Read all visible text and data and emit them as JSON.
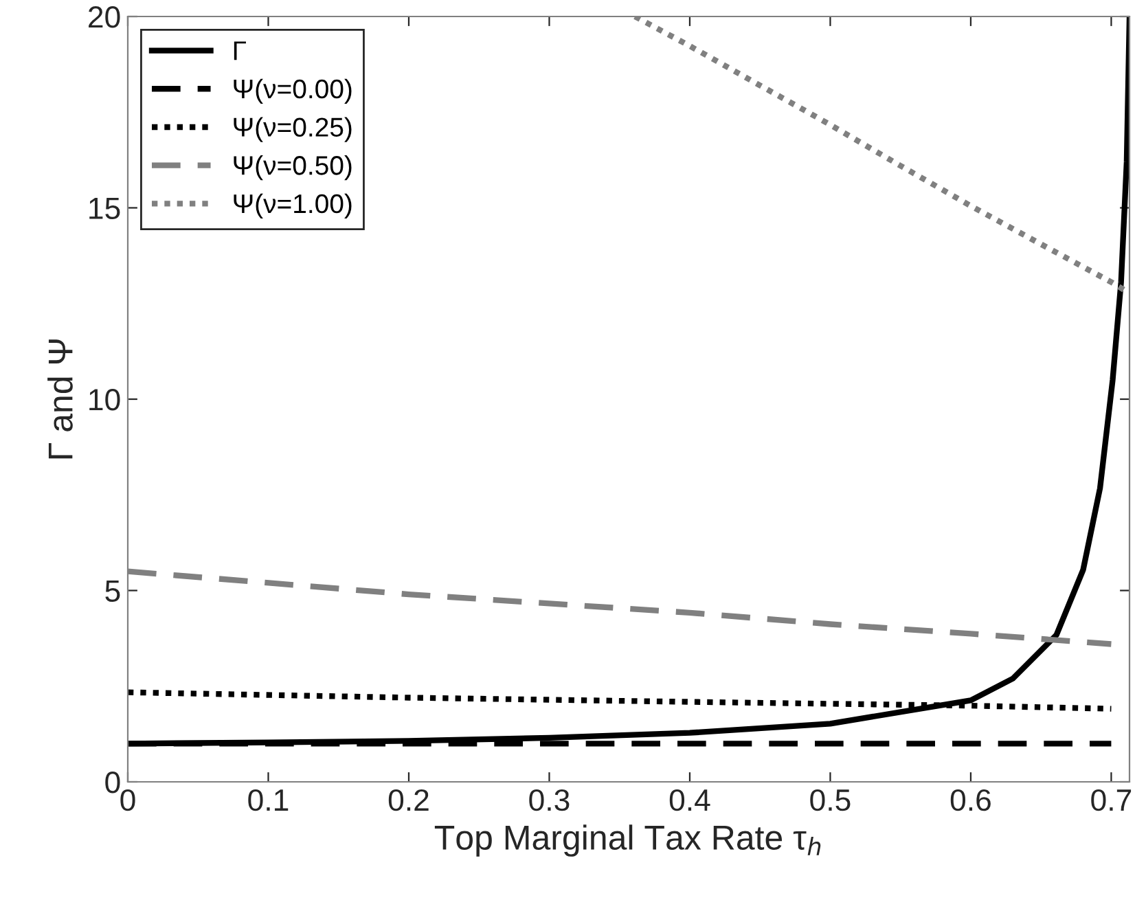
{
  "chart_data": {
    "type": "line",
    "xlabel": "Top Marginal Tax Rate τ$_{h}$",
    "ylabel": "Γ and Ψ",
    "xlim": [
      0,
      0.713
    ],
    "ylim": [
      0,
      20
    ],
    "xticks": [
      0,
      0.1,
      0.2,
      0.3,
      0.4,
      0.5,
      0.6,
      0.7
    ],
    "yticks": [
      0,
      5,
      10,
      15,
      20
    ],
    "grid": false,
    "legend": "top left",
    "series": [
      {
        "name": "Γ",
        "color": "#000000",
        "line_style": "solid",
        "x": [
          0,
          0.1,
          0.2,
          0.3,
          0.4,
          0.5,
          0.6,
          0.63,
          0.661,
          0.68,
          0.692,
          0.701,
          0.707,
          0.711,
          0.713
        ],
        "values": [
          1.0,
          1.03,
          1.07,
          1.15,
          1.28,
          1.52,
          2.13,
          2.7,
          3.84,
          5.54,
          7.67,
          10.5,
          13.06,
          16.2,
          20
        ]
      },
      {
        "name": "Ψ(ν=0.00)",
        "color": "#000000",
        "line_style": "dashed",
        "x": [
          0,
          0.7
        ],
        "values": [
          1.0,
          1.0
        ]
      },
      {
        "name": "Ψ(ν=0.25)",
        "color": "#000000",
        "line_style": "dotted",
        "x": [
          0,
          0.2,
          0.4,
          0.6,
          0.7
        ],
        "values": [
          2.34,
          2.2,
          2.09,
          1.99,
          1.91
        ]
      },
      {
        "name": "Ψ(ν=0.50)",
        "color": "#808080",
        "line_style": "dashed",
        "x": [
          0,
          0.2,
          0.4,
          0.5,
          0.6,
          0.7
        ],
        "values": [
          5.5,
          4.9,
          4.42,
          4.12,
          3.87,
          3.6
        ]
      },
      {
        "name": "Ψ(ν=1.00)",
        "color": "#808080",
        "line_style": "dotted",
        "x": [
          0.361,
          0.4,
          0.45,
          0.5,
          0.55,
          0.6,
          0.65,
          0.7,
          0.713
        ],
        "values": [
          20,
          19.23,
          18.2,
          17.17,
          16.1,
          15.05,
          14.05,
          13.06,
          12.77
        ]
      }
    ]
  }
}
